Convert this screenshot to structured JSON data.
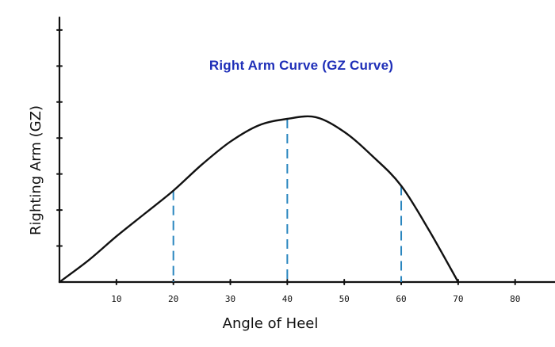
{
  "chart_data": {
    "type": "line",
    "title": "Right Arm Curve (GZ Curve)",
    "xlabel": "Angle of Heel",
    "ylabel": "Righting Arm (GZ)",
    "xlim": [
      0,
      87
    ],
    "ylim": [
      0,
      1
    ],
    "x_ticks": [
      10,
      20,
      30,
      40,
      50,
      60,
      70,
      80
    ],
    "x_tick_labels": [
      "10",
      "20",
      "30",
      "40",
      "50",
      "60",
      "70",
      "80"
    ],
    "y_tick_count": 7,
    "grid": false,
    "colors": {
      "title": "#1f2fb8",
      "curve": "#111111",
      "marker": "#2a86bf",
      "axis": "#111111"
    },
    "series": [
      {
        "x": [
          0,
          5,
          10,
          15,
          20,
          25,
          30,
          35,
          40,
          45,
          50,
          55,
          60,
          65,
          70
        ],
        "y": [
          0,
          0.13,
          0.28,
          0.42,
          0.56,
          0.72,
          0.86,
          0.96,
          1.0,
          1.01,
          0.92,
          0.77,
          0.59,
          0.31,
          0.0
        ]
      }
    ],
    "markers": [
      {
        "x": 20,
        "y": 0.56
      },
      {
        "x": 40,
        "y": 1.0
      },
      {
        "x": 60,
        "y": 0.59
      }
    ]
  }
}
